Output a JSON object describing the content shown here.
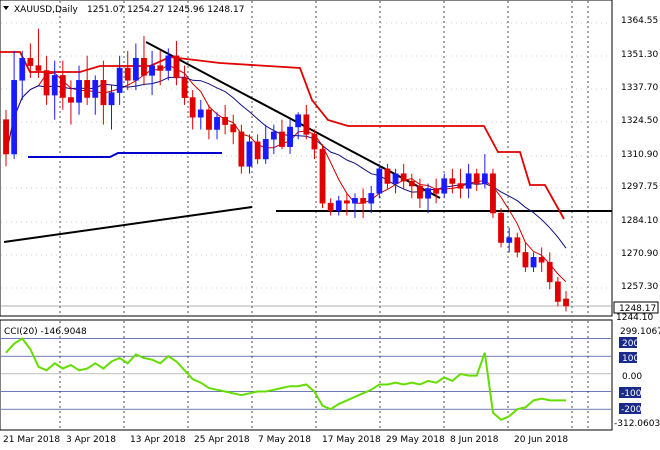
{
  "window": {
    "symbol_label": "XAUUSD,Daily",
    "ohlc_label": "1251.07 1254.27 1245.96 1248.17",
    "menu_arrow": "triangle-down-icon"
  },
  "price_panel": {
    "y_ticks": [
      "1364.55",
      "1351.30",
      "1337.70",
      "1324.50",
      "1310.90",
      "1297.75",
      "1284.10",
      "1270.90",
      "1257.30",
      "1244.10"
    ],
    "last_price_label": "1248.17"
  },
  "indicator_panel": {
    "label": "CCI(20) -146.9048",
    "y_ticks": [
      "299.1067",
      "200",
      "100",
      "0.00",
      "-100",
      "-200",
      "-312.0603"
    ]
  },
  "time_axis": {
    "labels": [
      "21 Mar 2018",
      "3 Apr 2018",
      "13 Apr 2018",
      "25 Apr 2018",
      "7 May 2018",
      "17 May 2018",
      "29 May 2018",
      "8 Jun 2018",
      "20 Jun 2018"
    ]
  },
  "colors": {
    "bull": "#1a1aff",
    "bear": "#e00000",
    "cci": "#66dd00",
    "resistance": "#e00000",
    "support": "#0000cc",
    "trendline": "#000000",
    "background": "#ffffff"
  },
  "chart_data": {
    "type": "candlestick",
    "series": [
      {
        "name": "XAUUSD,Daily",
        "values": [
          [
            1324,
            1328,
            1305,
            1310
          ],
          [
            1310,
            1352,
            1308,
            1340
          ],
          [
            1340,
            1352,
            1332,
            1349
          ],
          [
            1349,
            1355,
            1341,
            1346
          ],
          [
            1346,
            1361,
            1341,
            1344
          ],
          [
            1344,
            1350,
            1330,
            1334
          ],
          [
            1334,
            1348,
            1324,
            1342
          ],
          [
            1342,
            1348,
            1328,
            1333
          ],
          [
            1333,
            1340,
            1322,
            1331
          ],
          [
            1331,
            1346,
            1326,
            1340
          ],
          [
            1340,
            1350,
            1330,
            1333
          ],
          [
            1333,
            1342,
            1326,
            1340
          ],
          [
            1340,
            1348,
            1322,
            1330
          ],
          [
            1330,
            1338,
            1320,
            1335
          ],
          [
            1335,
            1350,
            1330,
            1345
          ],
          [
            1345,
            1352,
            1336,
            1340
          ],
          [
            1340,
            1355,
            1336,
            1349
          ],
          [
            1349,
            1358,
            1338,
            1342
          ],
          [
            1342,
            1352,
            1334,
            1346
          ],
          [
            1346,
            1352,
            1338,
            1344
          ],
          [
            1344,
            1353,
            1340,
            1350
          ],
          [
            1350,
            1356,
            1338,
            1341
          ],
          [
            1341,
            1346,
            1330,
            1333
          ],
          [
            1333,
            1336,
            1320,
            1325
          ],
          [
            1325,
            1332,
            1320,
            1328
          ],
          [
            1328,
            1330,
            1316,
            1320
          ],
          [
            1320,
            1327,
            1316,
            1325
          ],
          [
            1325,
            1330,
            1318,
            1322
          ],
          [
            1322,
            1326,
            1314,
            1319
          ],
          [
            1319,
            1322,
            1302,
            1305
          ],
          [
            1305,
            1318,
            1302,
            1315
          ],
          [
            1315,
            1318,
            1306,
            1308
          ],
          [
            1308,
            1322,
            1306,
            1316
          ],
          [
            1316,
            1322,
            1310,
            1319
          ],
          [
            1319,
            1324,
            1312,
            1313
          ],
          [
            1313,
            1324,
            1310,
            1321
          ],
          [
            1321,
            1327,
            1316,
            1326
          ],
          [
            1326,
            1330,
            1316,
            1318
          ],
          [
            1318,
            1320,
            1308,
            1312
          ],
          [
            1312,
            1314,
            1288,
            1290
          ],
          [
            1290,
            1292,
            1285,
            1287
          ],
          [
            1287,
            1293,
            1285,
            1291
          ],
          [
            1291,
            1294,
            1285,
            1290
          ],
          [
            1290,
            1294,
            1284,
            1292
          ],
          [
            1292,
            1296,
            1284,
            1290
          ],
          [
            1290,
            1297,
            1286,
            1294
          ],
          [
            1294,
            1306,
            1292,
            1304
          ],
          [
            1304,
            1306,
            1296,
            1298
          ],
          [
            1298,
            1304,
            1294,
            1302
          ],
          [
            1302,
            1306,
            1296,
            1299
          ],
          [
            1299,
            1302,
            1292,
            1297
          ],
          [
            1297,
            1300,
            1288,
            1292
          ],
          [
            1292,
            1298,
            1286,
            1296
          ],
          [
            1296,
            1300,
            1290,
            1294
          ],
          [
            1294,
            1302,
            1292,
            1300
          ],
          [
            1300,
            1304,
            1294,
            1298
          ],
          [
            1298,
            1304,
            1292,
            1296
          ],
          [
            1296,
            1306,
            1292,
            1302
          ],
          [
            1302,
            1304,
            1295,
            1298
          ],
          [
            1298,
            1310,
            1296,
            1302
          ],
          [
            1302,
            1304,
            1284,
            1286
          ],
          [
            1286,
            1288,
            1272,
            1274
          ],
          [
            1274,
            1280,
            1270,
            1276
          ],
          [
            1276,
            1278,
            1268,
            1270
          ],
          [
            1270,
            1274,
            1262,
            1264
          ],
          [
            1264,
            1270,
            1262,
            1268
          ],
          [
            1268,
            1272,
            1262,
            1266
          ],
          [
            1266,
            1270,
            1255,
            1258
          ],
          [
            1258,
            1260,
            1248,
            1250
          ],
          [
            1251.07,
            1254.27,
            1245.96,
            1248.17
          ]
        ]
      },
      {
        "name": "CCI(20)",
        "values": [
          120,
          170,
          200,
          140,
          40,
          20,
          60,
          30,
          50,
          20,
          30,
          60,
          30,
          70,
          90,
          60,
          110,
          90,
          80,
          60,
          100,
          70,
          20,
          -30,
          -50,
          -80,
          -90,
          -100,
          -110,
          -120,
          -110,
          -100,
          -100,
          -90,
          -80,
          -70,
          -70,
          -60,
          -100,
          -180,
          -200,
          -170,
          -150,
          -130,
          -110,
          -90,
          -60,
          -60,
          -50,
          -60,
          -50,
          -60,
          -40,
          -50,
          -20,
          -40,
          0,
          -10,
          -10,
          120,
          -220,
          -260,
          -240,
          -200,
          -190,
          -150,
          -140,
          -150,
          -150,
          -150
        ]
      }
    ],
    "ylim": [
      1244.1,
      1364.55
    ],
    "cci_ylim": [
      -312.0603,
      299.1067
    ]
  }
}
